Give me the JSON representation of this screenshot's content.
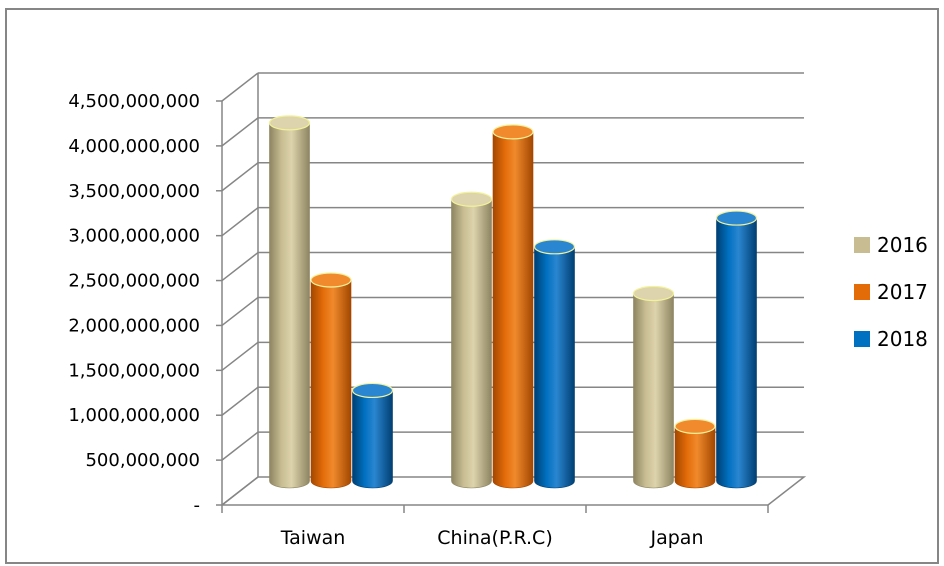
{
  "chart_data": {
    "type": "bar",
    "title": "",
    "xlabel": "",
    "ylabel": "",
    "categories": [
      "Taiwan",
      "China(P.R.C)",
      "Japan"
    ],
    "series": [
      {
        "name": "2016",
        "values": [
          4100000000,
          3250000000,
          2200000000
        ],
        "color": "#c8bd92",
        "dark": "#8d8461",
        "top": "#ddd3ac"
      },
      {
        "name": "2017",
        "values": [
          2350000000,
          4000000000,
          720000000
        ],
        "color": "#e36c09",
        "dark": "#a34700",
        "top": "#f08a2c"
      },
      {
        "name": "2018",
        "values": [
          1120000000,
          2720000000,
          3040000000
        ],
        "color": "#0070c0",
        "dark": "#003f73",
        "top": "#2a86d0"
      }
    ],
    "ylim": [
      0,
      4500000000
    ],
    "yticks": [
      0,
      500000000,
      1000000000,
      1500000000,
      2000000000,
      2500000000,
      3000000000,
      3500000000,
      4000000000,
      4500000000
    ],
    "ytick_labels": [
      "-",
      "500,000,000",
      "1,000,000,000",
      "1,500,000,000",
      "2,000,000,000",
      "2,500,000,000",
      "3,000,000,000",
      "3,500,000,000",
      "4,000,000,000",
      "4,500,000,000"
    ],
    "grid": true,
    "legend_position": "right",
    "style": "3d-cylinder"
  }
}
